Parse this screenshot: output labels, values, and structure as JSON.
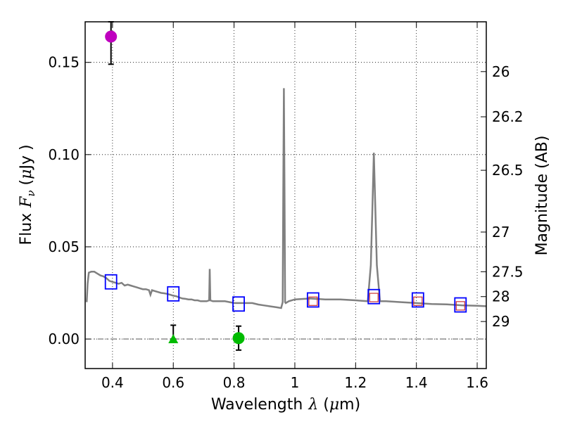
{
  "chart_data": {
    "type": "scatter",
    "xlabel": "Wavelength",
    "xlabel_symbol": "λ",
    "xlabel_unit_open": " (",
    "xlabel_unit_mu": "μ",
    "xlabel_unit_rest": "m)",
    "ylabel": "Flux",
    "ylabel_symbol": "F",
    "ylabel_symbol_sub": "ν",
    "ylabel_unit_open": " (",
    "ylabel_unit_mu": "μ",
    "ylabel_unit_rest": "Jy )",
    "y2label": "Magnitude (AB)",
    "xlim": [
      0.31,
      1.63
    ],
    "ylim": [
      -0.016,
      0.172
    ],
    "grid": true,
    "x_ticks": [
      0.4,
      0.6,
      0.8,
      1.0,
      1.2,
      1.4,
      1.6
    ],
    "x_tick_labels": [
      "0.4",
      "0.6",
      "0.8",
      "1",
      "1.2",
      "1.4",
      "1.6"
    ],
    "y_ticks": [
      0.0,
      0.05,
      0.1,
      0.15
    ],
    "y_tick_labels": [
      "0.00",
      "0.05",
      "0.10",
      "0.15"
    ],
    "right_axis_ticks": [
      {
        "label": "26",
        "flux": 0.145
      },
      {
        "label": "26.2",
        "flux": 0.1205
      },
      {
        "label": "26.5",
        "flux": 0.0915
      },
      {
        "label": "27",
        "flux": 0.058
      },
      {
        "label": "27.5",
        "flux": 0.0365
      },
      {
        "label": "28",
        "flux": 0.023
      },
      {
        "label": "29",
        "flux": 0.0095
      }
    ],
    "spectrum": {
      "name": "model spectrum",
      "color": "#808080",
      "x": [
        0.315,
        0.318,
        0.322,
        0.33,
        0.34,
        0.35,
        0.36,
        0.37,
        0.38,
        0.39,
        0.4,
        0.41,
        0.42,
        0.43,
        0.44,
        0.45,
        0.46,
        0.47,
        0.48,
        0.49,
        0.5,
        0.51,
        0.52,
        0.525,
        0.53,
        0.54,
        0.55,
        0.56,
        0.57,
        0.58,
        0.59,
        0.6,
        0.61,
        0.62,
        0.63,
        0.64,
        0.65,
        0.66,
        0.67,
        0.68,
        0.69,
        0.7,
        0.71,
        0.718,
        0.72,
        0.722,
        0.725,
        0.73,
        0.75,
        0.77,
        0.8,
        0.83,
        0.86,
        0.88,
        0.9,
        0.92,
        0.94,
        0.955,
        0.96,
        0.962,
        0.964,
        0.966,
        0.968,
        0.97,
        0.98,
        1.0,
        1.05,
        1.1,
        1.15,
        1.2,
        1.24,
        1.25,
        1.255,
        1.26,
        1.265,
        1.27,
        1.28,
        1.3,
        1.35,
        1.4,
        1.45,
        1.5,
        1.55,
        1.6,
        1.63
      ],
      "y": [
        0.02,
        0.03,
        0.036,
        0.0365,
        0.0365,
        0.0355,
        0.0345,
        0.034,
        0.033,
        0.0315,
        0.031,
        0.0305,
        0.03,
        0.0305,
        0.029,
        0.0295,
        0.029,
        0.0285,
        0.028,
        0.0275,
        0.027,
        0.027,
        0.0265,
        0.024,
        0.0265,
        0.026,
        0.0255,
        0.025,
        0.0248,
        0.0245,
        0.024,
        0.0235,
        0.0232,
        0.0225,
        0.022,
        0.0218,
        0.0215,
        0.0215,
        0.021,
        0.021,
        0.0205,
        0.0205,
        0.0205,
        0.021,
        0.038,
        0.021,
        0.0208,
        0.0205,
        0.0205,
        0.0205,
        0.0195,
        0.0195,
        0.0195,
        0.0187,
        0.0182,
        0.0177,
        0.0172,
        0.0168,
        0.02,
        0.08,
        0.136,
        0.08,
        0.02,
        0.0195,
        0.0205,
        0.0215,
        0.022,
        0.0215,
        0.0215,
        0.021,
        0.0205,
        0.04,
        0.07,
        0.101,
        0.07,
        0.04,
        0.0205,
        0.0205,
        0.02,
        0.0195,
        0.019,
        0.0188,
        0.0183,
        0.018,
        0.0178
      ]
    },
    "model_photometry": {
      "name": "model synthetic photometry",
      "marker": "open-square",
      "color": "#0000ff",
      "x": [
        0.395,
        0.6,
        0.815,
        1.06,
        1.26,
        1.405,
        1.545
      ],
      "y": [
        0.031,
        0.0245,
        0.019,
        0.0212,
        0.023,
        0.0212,
        0.0185
      ]
    },
    "red_photometry": {
      "name": "observed photometry (red squares)",
      "marker": "open-square",
      "color": "#cc3333",
      "x": [
        1.06,
        1.26,
        1.405,
        1.545
      ],
      "y": [
        0.0205,
        0.0225,
        0.0205,
        0.018
      ]
    },
    "observed_points": [
      {
        "name": "magenta circle",
        "marker": "circle",
        "color": "#bf00bf",
        "x": 0.395,
        "y": 0.164,
        "yerr_low": 0.149,
        "yerr_high": 0.172
      },
      {
        "name": "green triangle",
        "marker": "triangle",
        "color": "#00bb00",
        "x": 0.6,
        "y": 0.0,
        "yerr_low": 0.0,
        "yerr_high": 0.0075
      },
      {
        "name": "green circle",
        "marker": "circle",
        "color": "#00bb00",
        "x": 0.815,
        "y": 0.0005,
        "yerr_low": -0.006,
        "yerr_high": 0.007
      }
    ]
  }
}
